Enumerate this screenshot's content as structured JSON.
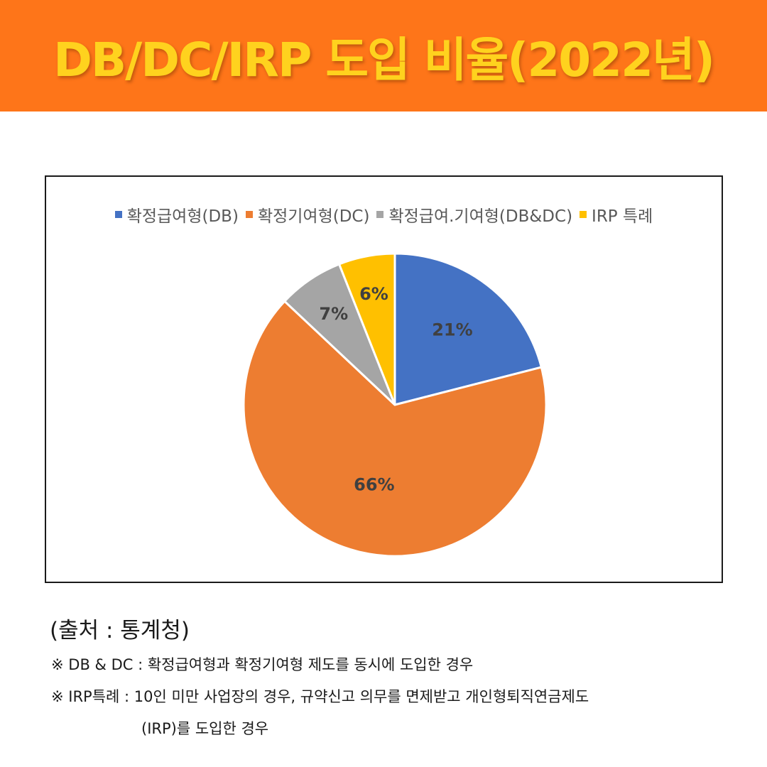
{
  "header": {
    "title": "DB/DC/IRP 도입 비율(2022년)",
    "background_color": "#fe7519",
    "title_color": "#ffd21e"
  },
  "chart_data": {
    "type": "pie",
    "title": "",
    "legend_position": "top",
    "categories": [
      "확정급여형(DB)",
      "확정기여형(DC)",
      "확정급여.기여형(DB&DC)",
      "IRP 특례"
    ],
    "values": [
      21,
      66,
      7,
      6
    ],
    "labels": [
      "21%",
      "66%",
      "7%",
      "6%"
    ],
    "colors": [
      "#4472c4",
      "#ed7d31",
      "#a5a5a5",
      "#ffc000"
    ],
    "start_angle": "12 o'clock",
    "direction": "clockwise"
  },
  "footer": {
    "source": "(출처 : 통계청)",
    "note1": "※ DB & DC : 확정급여형과 확정기여형 제도를 동시에 도입한 경우",
    "note2": "※ IRP특례 : 10인 미만 사업장의 경우, 규약신고 의무를 면제받고 개인형퇴직연금제도",
    "note2_cont": "(IRP)를 도입한 경우"
  }
}
